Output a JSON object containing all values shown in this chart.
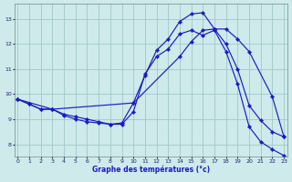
{
  "xlabel": "Graphe des températures (°c)",
  "bg_color": "#ceeaea",
  "line_color": "#1a1acc",
  "grid_color": "#a0c8c8",
  "x_ticks": [
    0,
    1,
    2,
    3,
    4,
    5,
    6,
    7,
    8,
    9,
    10,
    11,
    12,
    13,
    14,
    15,
    16,
    17,
    18,
    19,
    20,
    21,
    22,
    23
  ],
  "y_ticks": [
    8,
    9,
    10,
    11,
    12,
    13
  ],
  "xlim": [
    -0.3,
    23.3
  ],
  "ylim": [
    7.5,
    13.6
  ],
  "series1_x": [
    0,
    1,
    2,
    3,
    4,
    5,
    6,
    7,
    8,
    9,
    10,
    11,
    12,
    13,
    14,
    15,
    16,
    17,
    18,
    19,
    20,
    21,
    22,
    23
  ],
  "series1_y": [
    9.8,
    9.6,
    9.4,
    9.4,
    9.2,
    9.1,
    9.0,
    8.9,
    8.8,
    8.8,
    9.3,
    10.8,
    11.5,
    11.8,
    12.4,
    12.55,
    12.35,
    12.55,
    11.7,
    10.4,
    8.7,
    8.1,
    7.8,
    7.55
  ],
  "series2_x": [
    0,
    1,
    2,
    3,
    4,
    5,
    6,
    7,
    8,
    9,
    10,
    11,
    12,
    13,
    14,
    15,
    16,
    17,
    18,
    19,
    20,
    21,
    22,
    23
  ],
  "series2_y": [
    9.8,
    9.6,
    9.4,
    9.4,
    9.15,
    9.0,
    8.9,
    8.85,
    8.8,
    8.85,
    9.65,
    10.75,
    11.75,
    12.2,
    12.9,
    13.2,
    13.25,
    12.6,
    12.0,
    11.0,
    9.55,
    8.95,
    8.5,
    8.3
  ],
  "series3_x": [
    0,
    3,
    10,
    14,
    15,
    16,
    17,
    18,
    19,
    20,
    22,
    23
  ],
  "series3_y": [
    9.8,
    9.4,
    9.65,
    11.5,
    12.1,
    12.55,
    12.6,
    12.6,
    12.2,
    11.7,
    9.9,
    8.3
  ],
  "marker_size": 2.2,
  "lw": 0.85
}
